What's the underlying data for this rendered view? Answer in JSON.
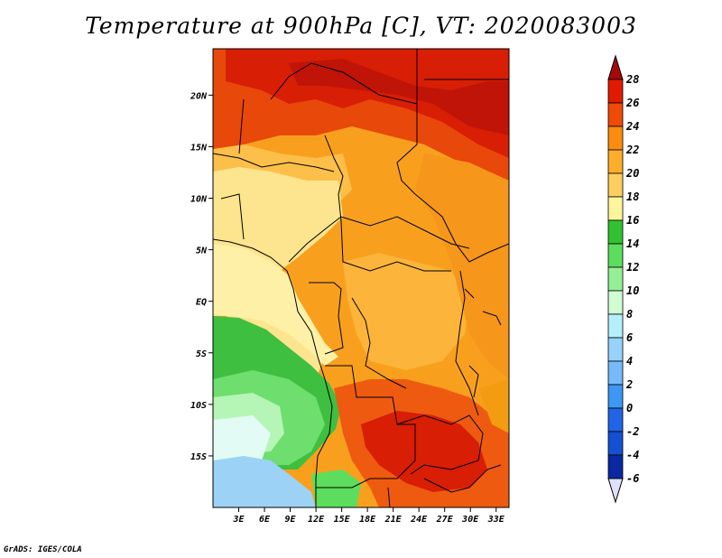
{
  "title": "Temperature at 900hPa [C], VT: 2020083003",
  "footer": "GrADS: IGES/COLA",
  "map": {
    "lon_range": [
      0,
      34.5
    ],
    "lat_range": [
      -20,
      24.5
    ],
    "x_ticks": [
      "3E",
      "6E",
      "9E",
      "12E",
      "15E",
      "18E",
      "21E",
      "24E",
      "27E",
      "30E",
      "33E"
    ],
    "y_ticks": [
      "20N",
      "15N",
      "10N",
      "5N",
      "EQ",
      "5S",
      "10S",
      "15S"
    ]
  },
  "colorbar": {
    "labels": [
      "28",
      "26",
      "24",
      "22",
      "20",
      "18",
      "16",
      "14",
      "12",
      "10",
      "8",
      "6",
      "4",
      "2",
      "0",
      "-2",
      "-4",
      "-6"
    ],
    "colors": [
      "#a50a0a",
      "#e11b00",
      "#f04a06",
      "#fa8c0f",
      "#fcae2b",
      "#fece5e",
      "#fff59c",
      "#30c230",
      "#5ddd5d",
      "#95ef95",
      "#d2fdd2",
      "#b4f0fa",
      "#96d2fa",
      "#78b9fa",
      "#3c97f5",
      "#2164e6",
      "#1450d2",
      "#0a28a0",
      "#0c0a78"
    ],
    "top_triangle_color": "#a50a0a",
    "bottom_triangle_color": "#e0e0ff"
  },
  "colors": {
    "hot": "#d81e05",
    "orange": "#f39c12",
    "light_orange": "#fcbf4a",
    "pale_yellow": "#fde48e",
    "green": "#3fbf3f",
    "light_green": "#98ec98",
    "light_blue": "#9cd2f5"
  }
}
